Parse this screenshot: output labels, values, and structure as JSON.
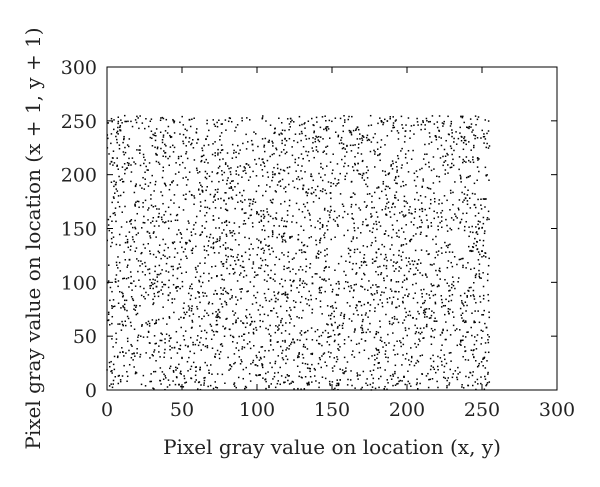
{
  "chart_data": {
    "type": "scatter",
    "title": "",
    "xlabel": "Pixel gray value on location (x, y)",
    "ylabel": "Pixel gray value on location (x + 1, y + 1)",
    "xlim": [
      0,
      300
    ],
    "ylim": [
      0,
      300
    ],
    "xticks": [
      0,
      50,
      100,
      150,
      200,
      250,
      300
    ],
    "yticks": [
      0,
      50,
      100,
      150,
      200,
      250,
      300
    ],
    "grid": false,
    "legend": "none",
    "point_color": "#000000",
    "distribution": "uniform",
    "value_range": [
      0,
      255
    ],
    "series": [
      {
        "x": [
          3,
          18,
          27,
          41,
          55,
          62,
          78,
          86,
          97,
          109,
          118,
          131,
          142,
          155,
          167,
          174,
          186,
          198,
          207,
          219,
          228,
          241,
          250,
          9,
          33,
          48,
          71,
          93,
          124,
          149,
          181,
          213,
          236,
          253,
          15,
          66,
          102,
          137,
          171,
          204,
          245
        ],
        "y": [
          212,
          34,
          147,
          88,
          251,
          19,
          176,
          63,
          228,
          104,
          7,
          190,
          139,
          52,
          244,
          81,
          163,
          12,
          117,
          236,
          71,
          198,
          129,
          241,
          96,
          5,
          158,
          210,
          47,
          183,
          25,
          143,
          254,
          58,
          121,
          233,
          14,
          99,
          201,
          67,
          172
        ]
      }
    ]
  }
}
